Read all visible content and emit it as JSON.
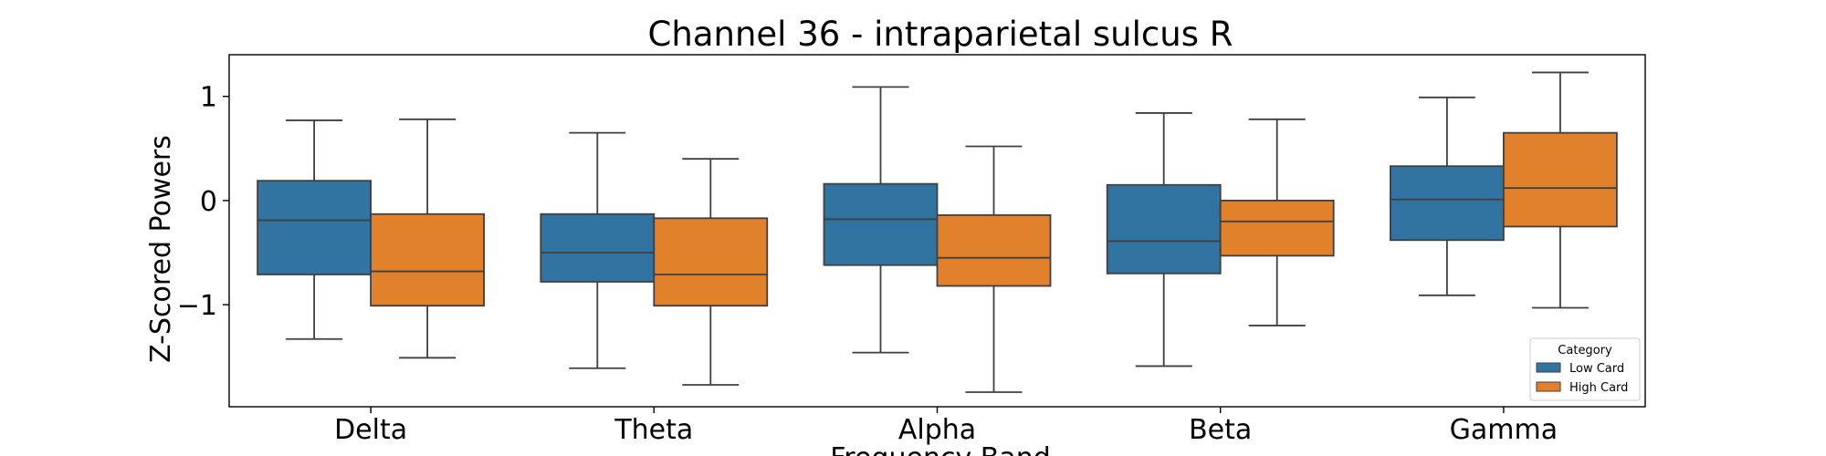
{
  "chart_data": {
    "type": "boxplot",
    "title": "Channel 36 - intraparietal sulcus R",
    "xlabel": "Frequency Band",
    "ylabel": "Z-Scored Powers",
    "categories": [
      "Delta",
      "Theta",
      "Alpha",
      "Beta",
      "Gamma"
    ],
    "ylim": [
      -1.98,
      1.4
    ],
    "yticks": [
      {
        "value": 1,
        "label": "1"
      },
      {
        "value": 0,
        "label": "0"
      },
      {
        "value": -1,
        "label": "−1"
      }
    ],
    "grid": false,
    "legend": {
      "title": "Category",
      "placement": "bottom-right"
    },
    "series": [
      {
        "name": "Low Card",
        "color": "#3274a1",
        "boxes": [
          {
            "whisker_low": -1.33,
            "q1": -0.71,
            "median": -0.19,
            "q3": 0.19,
            "whisker_high": 0.77
          },
          {
            "whisker_low": -1.61,
            "q1": -0.78,
            "median": -0.5,
            "q3": -0.13,
            "whisker_high": 0.65
          },
          {
            "whisker_low": -1.46,
            "q1": -0.62,
            "median": -0.18,
            "q3": 0.16,
            "whisker_high": 1.09
          },
          {
            "whisker_low": -1.59,
            "q1": -0.7,
            "median": -0.39,
            "q3": 0.15,
            "whisker_high": 0.84
          },
          {
            "whisker_low": -0.91,
            "q1": -0.38,
            "median": 0.01,
            "q3": 0.33,
            "whisker_high": 0.99
          }
        ]
      },
      {
        "name": "High Card",
        "color": "#e1812c",
        "boxes": [
          {
            "whisker_low": -1.51,
            "q1": -1.01,
            "median": -0.68,
            "q3": -0.13,
            "whisker_high": 0.78
          },
          {
            "whisker_low": -1.77,
            "q1": -1.01,
            "median": -0.71,
            "q3": -0.17,
            "whisker_high": 0.4
          },
          {
            "whisker_low": -1.84,
            "q1": -0.82,
            "median": -0.55,
            "q3": -0.14,
            "whisker_high": 0.52
          },
          {
            "whisker_low": -1.2,
            "q1": -0.53,
            "median": -0.2,
            "q3": 0.0,
            "whisker_high": 0.78
          },
          {
            "whisker_low": -1.03,
            "q1": -0.25,
            "median": 0.12,
            "q3": 0.65,
            "whisker_high": 1.23
          }
        ]
      }
    ]
  }
}
